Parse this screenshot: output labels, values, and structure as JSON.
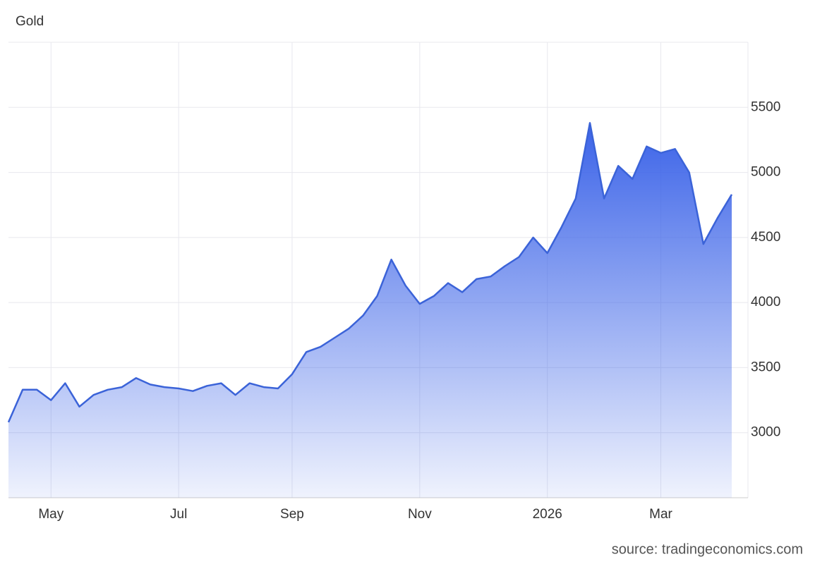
{
  "chart_data": {
    "type": "area",
    "title": "Gold",
    "source": "source: tradingeconomics.com",
    "categories": [
      null,
      null,
      null,
      "May",
      null,
      null,
      null,
      null,
      null,
      null,
      null,
      null,
      "Jul",
      null,
      null,
      null,
      null,
      null,
      null,
      null,
      "Sep",
      null,
      null,
      null,
      null,
      null,
      null,
      null,
      null,
      "Nov",
      null,
      null,
      null,
      null,
      null,
      null,
      null,
      null,
      "2026",
      null,
      null,
      null,
      null,
      null,
      null,
      null,
      "Mar",
      null,
      null,
      null,
      null,
      null
    ],
    "series": [
      {
        "name": "Gold",
        "color": "#3b63d8",
        "values": [
          3080,
          3330,
          3330,
          3250,
          3380,
          3200,
          3290,
          3330,
          3350,
          3420,
          3370,
          3350,
          3340,
          3320,
          3360,
          3380,
          3290,
          3380,
          3350,
          3340,
          3450,
          3620,
          3660,
          3730,
          3800,
          3900,
          4050,
          4330,
          4130,
          3990,
          4050,
          4150,
          4080,
          4180,
          4200,
          4280,
          4350,
          4500,
          4380,
          4580,
          4800,
          5380,
          4800,
          5050,
          4950,
          5200,
          5150,
          5180,
          5000,
          4450,
          4650,
          4830
        ]
      }
    ],
    "ylim": [
      2500,
      6000
    ],
    "yticks": [
      3000,
      3500,
      4000,
      4500,
      5000,
      5500
    ],
    "grid": true
  }
}
